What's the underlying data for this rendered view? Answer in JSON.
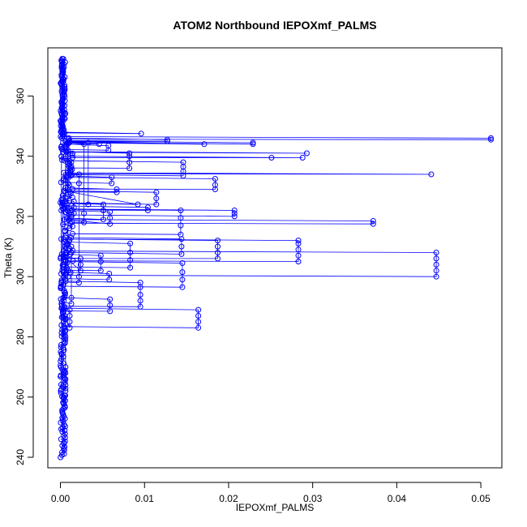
{
  "chart_data": {
    "type": "scatter",
    "title": "ATOM2 Northbound IEPOXmf_PALMS",
    "xlabel": "IEPOXmf_PALMS",
    "ylabel": "Theta (K)",
    "xlim": [
      -0.0015,
      0.0525
    ],
    "ylim": [
      236.5,
      376
    ],
    "x_ticks": [
      0.0,
      0.01,
      0.02,
      0.03,
      0.04,
      0.05
    ],
    "x_tick_labels": [
      "0.00",
      "0.01",
      "0.02",
      "0.03",
      "0.04",
      "0.05"
    ],
    "y_ticks": [
      240,
      260,
      280,
      300,
      320,
      340,
      360
    ],
    "y_tick_labels": [
      "240",
      "260",
      "280",
      "300",
      "320",
      "340",
      "360"
    ],
    "grid": false,
    "legend": "none",
    "connect_points": true,
    "color": "#0000ff",
    "clusters": [
      {
        "x": 0.0512,
        "y": [
          345.5,
          346
        ]
      },
      {
        "x": 0.0447,
        "y": [
          300,
          302,
          304,
          306,
          308
        ]
      },
      {
        "x": 0.0441,
        "y": [
          334
        ]
      },
      {
        "x": 0.0372,
        "y": [
          317.5,
          318.5
        ]
      },
      {
        "x": 0.0293,
        "y": [
          341
        ]
      },
      {
        "x": 0.0288,
        "y": [
          339.5
        ]
      },
      {
        "x": 0.0283,
        "y": [
          305,
          307,
          309,
          311,
          312
        ]
      },
      {
        "x": 0.0251,
        "y": [
          339.5
        ]
      },
      {
        "x": 0.0229,
        "y": [
          344,
          344.5
        ]
      },
      {
        "x": 0.0207,
        "y": [
          320,
          321,
          322
        ]
      },
      {
        "x": 0.0184,
        "y": [
          329,
          330.5,
          332.5
        ]
      },
      {
        "x": 0.0187,
        "y": [
          306,
          308,
          310,
          312
        ]
      },
      {
        "x": 0.0171,
        "y": [
          344
        ]
      },
      {
        "x": 0.0164,
        "y": [
          283,
          285,
          287,
          289
        ]
      },
      {
        "x": 0.0146,
        "y": [
          333.5,
          335,
          336.5,
          338
        ]
      },
      {
        "x": 0.0145,
        "y": [
          296.5,
          299,
          301.5,
          304.5
        ]
      },
      {
        "x": 0.0144,
        "y": [
          307.5,
          310,
          312.5
        ]
      },
      {
        "x": 0.0143,
        "y": [
          314,
          317,
          319.5,
          322
        ]
      },
      {
        "x": 0.0127,
        "y": [
          345,
          345.5
        ]
      },
      {
        "x": 0.0114,
        "y": [
          324,
          326,
          328
        ]
      },
      {
        "x": 0.0104,
        "y": [
          322,
          323
        ]
      },
      {
        "x": 0.0096,
        "y": [
          347.5
        ]
      },
      {
        "x": 0.0095,
        "y": [
          290,
          292,
          294,
          296.5,
          298
        ]
      },
      {
        "x": 0.0092,
        "y": [
          324
        ]
      },
      {
        "x": 0.0083,
        "y": [
          303,
          305.5,
          308,
          311
        ]
      },
      {
        "x": 0.0082,
        "y": [
          336,
          338,
          340,
          341
        ]
      },
      {
        "x": 0.0067,
        "y": [
          328,
          329
        ]
      },
      {
        "x": 0.0061,
        "y": [
          331,
          333
        ]
      },
      {
        "x": 0.0059,
        "y": [
          288.5,
          290.5,
          292.5
        ]
      },
      {
        "x": 0.0059,
        "y": [
          317.5,
          319.5,
          321.5
        ]
      },
      {
        "x": 0.0058,
        "y": [
          299,
          301
        ]
      },
      {
        "x": 0.0057,
        "y": [
          342,
          343.5
        ]
      },
      {
        "x": 0.0051,
        "y": [
          319,
          322,
          324
        ]
      },
      {
        "x": 0.0048,
        "y": [
          302,
          305,
          307
        ]
      },
      {
        "x": 0.0046,
        "y": [
          344
        ]
      },
      {
        "x": 0.0033,
        "y": [
          324,
          344.5
        ]
      },
      {
        "x": 0.0028,
        "y": [
          318,
          321,
          344
        ]
      },
      {
        "x": 0.0024,
        "y": [
          302,
          304,
          306
        ]
      },
      {
        "x": 0.0022,
        "y": [
          298,
          300,
          331,
          334
        ]
      },
      {
        "x": 0.0016,
        "y": [
          321,
          323,
          325
        ]
      },
      {
        "x": 0.0013,
        "y": [
          291,
          293,
          308,
          310
        ]
      },
      {
        "x": 0.0011,
        "y": [
          283,
          285,
          287,
          289
        ]
      },
      {
        "x": 0.0009,
        "y": [
          300,
          302,
          336,
          338,
          340,
          342
        ]
      },
      {
        "x": 0.0006,
        "y": [
          262,
          264,
          266,
          268,
          270,
          280,
          282,
          286
        ]
      },
      {
        "x": 0.0004,
        "y": [
          258,
          260
        ]
      }
    ]
  }
}
